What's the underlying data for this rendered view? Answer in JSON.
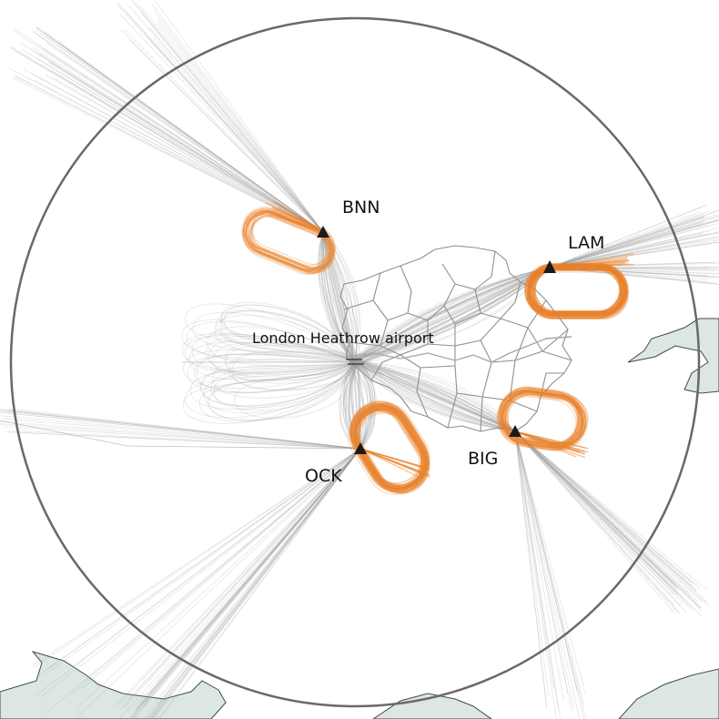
{
  "map": {
    "airport_label": "London Heathrow airport",
    "holding_stacks": [
      {
        "code": "BNN"
      },
      {
        "code": "LAM"
      },
      {
        "code": "OCK"
      },
      {
        "code": "BIG"
      }
    ]
  },
  "colors": {
    "holding_pattern": "#e8822b",
    "flight_track": "#9a9a9a",
    "boundary_circle": "#6e6767",
    "borough_lines": "#8f8f8f",
    "water": "#dce7e5",
    "coast_outline": "#3f4a4a",
    "marker": "#1a1a1a"
  }
}
